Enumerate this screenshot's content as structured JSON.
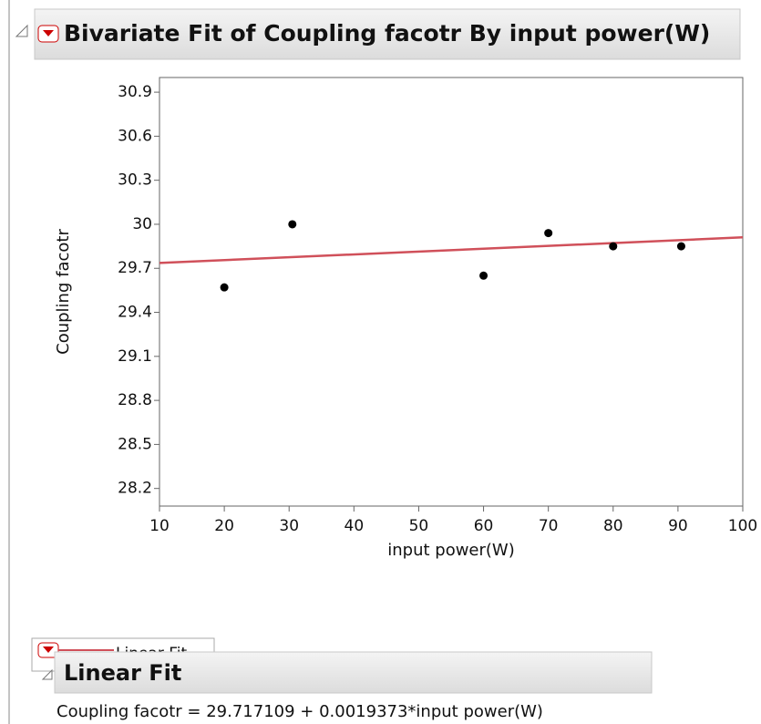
{
  "header": {
    "title": "Bivariate Fit of Coupling facotr By input power(W)"
  },
  "chart_data": {
    "type": "scatter",
    "x_label": "input power(W)",
    "y_label": "Coupling facotr",
    "x": [
      20,
      30.5,
      60,
      70,
      80,
      90.5
    ],
    "values": [
      29.57,
      30.0,
      29.65,
      29.94,
      29.85,
      29.85
    ],
    "color": "#000000",
    "xlim": [
      10,
      100
    ],
    "xticks": [
      10,
      20,
      30,
      40,
      50,
      60,
      70,
      80,
      90,
      100
    ],
    "ylim": [
      28.08,
      31.0
    ],
    "yticks": [
      28.2,
      28.5,
      28.8,
      29.1,
      29.4,
      29.7,
      30,
      30.3,
      30.6,
      30.9
    ],
    "fit": {
      "intercept": 29.717109,
      "slope": 0.0019373,
      "color": "#d0505a"
    }
  },
  "legend": {
    "label": "Linear Fit"
  },
  "linear_fit": {
    "title": "Linear Fit",
    "equation": "Coupling facotr = 29.717109 + 0.0019373*input power(W)"
  }
}
